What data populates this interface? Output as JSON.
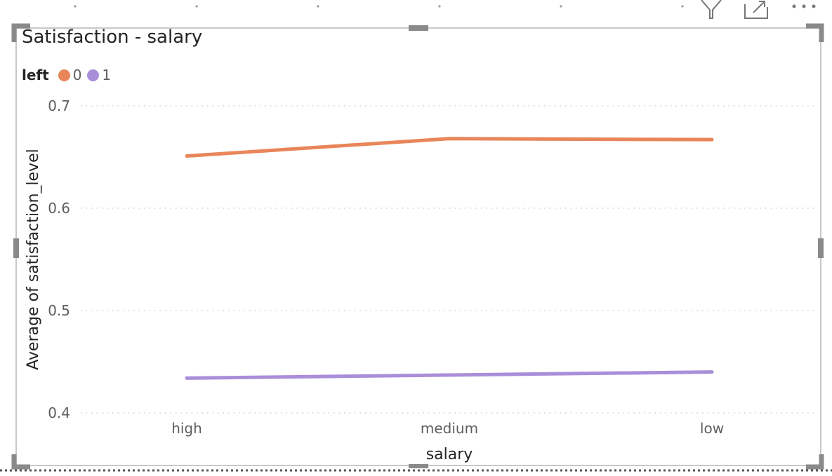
{
  "visual": {
    "title": "Satisfaction - salary",
    "header_icons": [
      "filter-icon",
      "focus-mode-icon",
      "more-options-icon"
    ]
  },
  "legend": {
    "title": "left",
    "items": [
      {
        "label": "0",
        "color": "#E8865A"
      },
      {
        "label": "1",
        "color": "#A98ED9"
      }
    ]
  },
  "chart_data": {
    "type": "line",
    "title": "Satisfaction - salary",
    "xlabel": "salary",
    "ylabel": "Average of satisfaction_level",
    "categories": [
      "high",
      "medium",
      "low"
    ],
    "ylim": [
      0.4,
      0.7
    ],
    "yticks": [
      "0.7",
      "0.6",
      "0.5",
      "0.4"
    ],
    "ytick_values": [
      0.7,
      0.6,
      0.5,
      0.4
    ],
    "grid": true,
    "legend_position": "top-left",
    "series": [
      {
        "name": "0",
        "color": "#E8865A",
        "values": [
          0.651,
          0.668,
          0.667
        ]
      },
      {
        "name": "1",
        "color": "#A98ED9",
        "values": [
          0.434,
          0.437,
          0.44
        ]
      }
    ]
  }
}
